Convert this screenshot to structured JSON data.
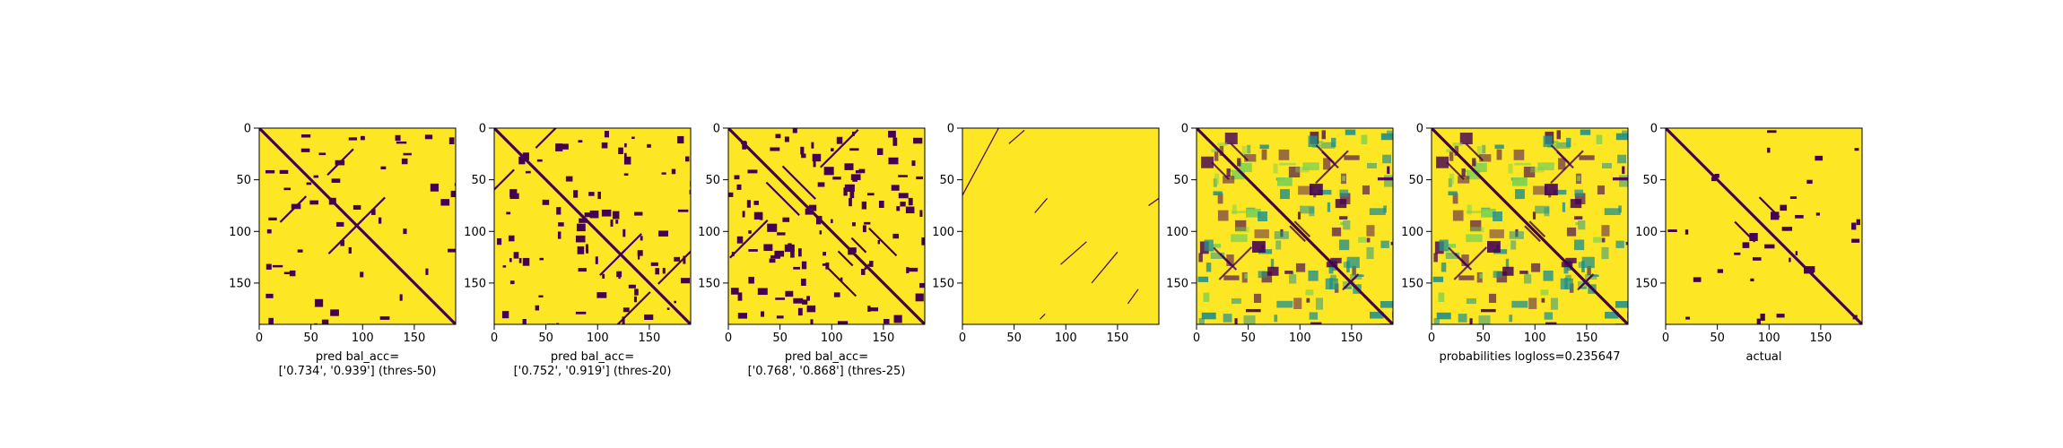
{
  "figure": {
    "colors": {
      "background": "#fde725",
      "contact": "#440154",
      "mid": "#21918c",
      "light": "#7ad151"
    },
    "axis": {
      "xticks": [
        "0",
        "50",
        "100",
        "150"
      ],
      "yticks": [
        "0",
        "50",
        "100",
        "150"
      ]
    }
  },
  "chart_data": [
    {
      "type": "heatmap",
      "panel": 1,
      "render": "binary",
      "density": 0.1,
      "seed": 11,
      "size": 190,
      "xlim": [
        0,
        190
      ],
      "ylim": [
        190,
        0
      ],
      "xticks": [
        0,
        50,
        100,
        150
      ],
      "yticks": [
        0,
        50,
        100,
        150
      ],
      "caption": [
        "pred bal_acc=",
        "['0.734', '0.939'] (thres-50)"
      ]
    },
    {
      "type": "heatmap",
      "panel": 2,
      "render": "binary",
      "density": 0.17,
      "seed": 23,
      "size": 190,
      "xlim": [
        0,
        190
      ],
      "ylim": [
        190,
        0
      ],
      "xticks": [
        0,
        50,
        100,
        150
      ],
      "yticks": [
        0,
        50,
        100,
        150
      ],
      "caption": [
        "pred bal_acc=",
        "['0.752', '0.919'] (thres-20)"
      ]
    },
    {
      "type": "heatmap",
      "panel": 3,
      "render": "binary",
      "density": 0.24,
      "seed": 37,
      "size": 190,
      "xlim": [
        0,
        190
      ],
      "ylim": [
        190,
        0
      ],
      "xticks": [
        0,
        50,
        100,
        150
      ],
      "yticks": [
        0,
        50,
        100,
        150
      ],
      "caption": [
        "pred bal_acc=",
        "['0.768', '0.868'] (thres-25)"
      ]
    },
    {
      "type": "heatmap",
      "panel": 4,
      "render": "sparse",
      "density": 0.0,
      "seed": 41,
      "size": 190,
      "xlim": [
        0,
        190
      ],
      "ylim": [
        190,
        0
      ],
      "xticks": [
        0,
        50,
        100,
        150
      ],
      "yticks": [
        0,
        50,
        100,
        150
      ],
      "caption": []
    },
    {
      "type": "heatmap",
      "panel": 5,
      "render": "continuous",
      "density": 0.3,
      "seed": 53,
      "size": 190,
      "xlim": [
        0,
        190
      ],
      "ylim": [
        190,
        0
      ],
      "xticks": [
        0,
        50,
        100,
        150
      ],
      "yticks": [
        0,
        50,
        100,
        150
      ],
      "caption": []
    },
    {
      "type": "heatmap",
      "panel": 6,
      "render": "continuous",
      "density": 0.3,
      "seed": 53,
      "size": 190,
      "xlim": [
        0,
        190
      ],
      "ylim": [
        190,
        0
      ],
      "xticks": [
        0,
        50,
        100,
        150
      ],
      "yticks": [
        0,
        50,
        100,
        150
      ],
      "caption": [
        "probabilities logloss=0.235647"
      ]
    },
    {
      "type": "heatmap",
      "panel": 7,
      "render": "binary",
      "density": 0.07,
      "seed": 71,
      "size": 190,
      "xlim": [
        0,
        190
      ],
      "ylim": [
        190,
        0
      ],
      "xticks": [
        0,
        50,
        100,
        150
      ],
      "yticks": [
        0,
        50,
        100,
        150
      ],
      "caption": [
        "actual"
      ]
    }
  ]
}
